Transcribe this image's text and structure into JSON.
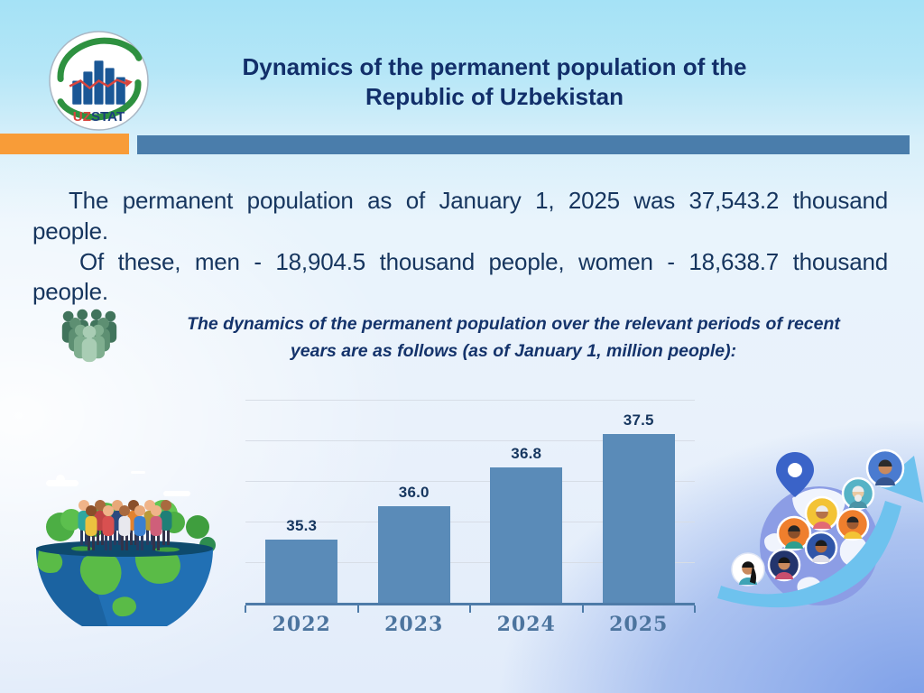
{
  "header": {
    "title_line1": "Dynamics of the permanent population of the",
    "title_line2": "Republic of Uzbekistan",
    "logo": {
      "text_uz": "UZ",
      "text_stat": "STAT"
    }
  },
  "accent_bars": {
    "orange": "#F89C38",
    "blue": "#4A7DAB"
  },
  "body": {
    "paragraph1": "The permanent population as of January 1, 2025 was 37,543.2 thousand people.",
    "paragraph2": "Of these, men - 18,904.5 thousand people, women - 18,638.7 thousand people.",
    "caption_line1": "The dynamics of the permanent population over the relevant periods of recent",
    "caption_line2": "years are as follows (as of January 1, million people):"
  },
  "chart_data": {
    "type": "bar",
    "categories": [
      "2022",
      "2023",
      "2024",
      "2025"
    ],
    "values": [
      35.3,
      36.0,
      36.8,
      37.5
    ],
    "labels": [
      "35.3",
      "36.0",
      "36.8",
      "37.5"
    ],
    "title": "",
    "xlabel": "",
    "ylabel": "",
    "ylim": [
      34,
      38.2
    ],
    "grid": true,
    "legend": "none",
    "bar_color": "#5A8BB8",
    "label_color": "#16365F",
    "axis_color": "#4E7BA8",
    "tick_label_color": "#4C749E"
  },
  "icons": {
    "logo": "uzstat-logo",
    "caption": "people-group-icon",
    "left": "earth-with-people-illustration",
    "right": "globe-avatars-growth-arrow-illustration"
  }
}
